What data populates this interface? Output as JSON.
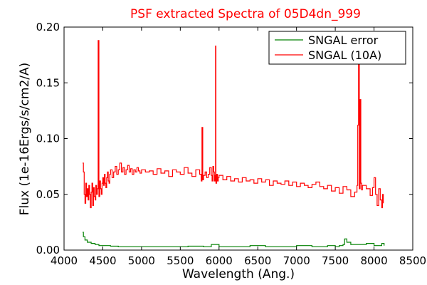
{
  "chart_data": {
    "type": "line",
    "title": "PSF extracted Spectra of 05D4dn_999",
    "xlabel": "Wavelength (Ang.)",
    "ylabel": "Flux (1e-16Ergs/s/cm2/A)",
    "xlim": [
      4000,
      8500
    ],
    "ylim": [
      0.0,
      0.2
    ],
    "xticks": [
      "4000",
      "4500",
      "5000",
      "5500",
      "6000",
      "6500",
      "7000",
      "7500",
      "8000",
      "8500"
    ],
    "yticks": [
      "0.00",
      "0.05",
      "0.10",
      "0.15",
      "0.20"
    ],
    "grid": false,
    "legend_position": "top-right",
    "series": [
      {
        "name": "SNGAL error",
        "color": "#008000",
        "x": [
          4240,
          4250,
          4270,
          4300,
          4350,
          4400,
          4450,
          4500,
          4600,
          4700,
          4800,
          4900,
          5000,
          5200,
          5400,
          5600,
          5800,
          5900,
          6000,
          6200,
          6400,
          6600,
          6800,
          7000,
          7200,
          7400,
          7500,
          7550,
          7600,
          7620,
          7650,
          7700,
          7800,
          7900,
          8000,
          8100,
          8130
        ],
        "y": [
          0.016,
          0.012,
          0.009,
          0.007,
          0.006,
          0.005,
          0.004,
          0.004,
          0.0035,
          0.003,
          0.003,
          0.003,
          0.003,
          0.003,
          0.003,
          0.0035,
          0.003,
          0.005,
          0.003,
          0.003,
          0.004,
          0.003,
          0.003,
          0.004,
          0.003,
          0.004,
          0.003,
          0.004,
          0.005,
          0.01,
          0.007,
          0.005,
          0.005,
          0.006,
          0.004,
          0.006,
          0.004
        ]
      },
      {
        "name": "SNGAL (10A)",
        "color": "#ff0000",
        "x": [
          4240,
          4250,
          4260,
          4270,
          4280,
          4290,
          4300,
          4310,
          4320,
          4330,
          4340,
          4350,
          4360,
          4370,
          4380,
          4390,
          4400,
          4410,
          4420,
          4430,
          4440,
          4450,
          4460,
          4470,
          4480,
          4490,
          4500,
          4510,
          4520,
          4530,
          4540,
          4550,
          4560,
          4570,
          4580,
          4590,
          4600,
          4620,
          4640,
          4660,
          4680,
          4700,
          4720,
          4740,
          4760,
          4780,
          4800,
          4820,
          4840,
          4860,
          4880,
          4900,
          4920,
          4940,
          4960,
          4980,
          5000,
          5050,
          5100,
          5150,
          5200,
          5250,
          5300,
          5350,
          5400,
          5450,
          5500,
          5550,
          5600,
          5650,
          5700,
          5750,
          5770,
          5780,
          5790,
          5800,
          5820,
          5840,
          5860,
          5880,
          5900,
          5910,
          5920,
          5930,
          5940,
          5950,
          5955,
          5960,
          5970,
          5980,
          5990,
          6000,
          6050,
          6100,
          6150,
          6200,
          6250,
          6300,
          6350,
          6400,
          6450,
          6500,
          6550,
          6600,
          6650,
          6700,
          6750,
          6800,
          6850,
          6900,
          6950,
          7000,
          7050,
          7100,
          7150,
          7200,
          7250,
          7300,
          7350,
          7400,
          7450,
          7500,
          7550,
          7600,
          7650,
          7700,
          7750,
          7780,
          7790,
          7800,
          7810,
          7820,
          7830,
          7840,
          7850,
          7900,
          7950,
          7980,
          8000,
          8020,
          8040,
          8060,
          8080,
          8100,
          8110,
          8120
        ],
        "y": [
          0.078,
          0.07,
          0.05,
          0.042,
          0.06,
          0.048,
          0.055,
          0.045,
          0.058,
          0.05,
          0.038,
          0.052,
          0.06,
          0.04,
          0.056,
          0.048,
          0.045,
          0.058,
          0.05,
          0.055,
          0.188,
          0.048,
          0.062,
          0.055,
          0.05,
          0.06,
          0.065,
          0.058,
          0.068,
          0.06,
          0.056,
          0.065,
          0.07,
          0.062,
          0.06,
          0.068,
          0.072,
          0.065,
          0.07,
          0.075,
          0.068,
          0.072,
          0.078,
          0.07,
          0.074,
          0.068,
          0.072,
          0.076,
          0.07,
          0.073,
          0.068,
          0.072,
          0.07,
          0.074,
          0.071,
          0.069,
          0.072,
          0.07,
          0.071,
          0.068,
          0.073,
          0.069,
          0.071,
          0.066,
          0.072,
          0.07,
          0.068,
          0.074,
          0.069,
          0.066,
          0.072,
          0.068,
          0.062,
          0.11,
          0.063,
          0.067,
          0.07,
          0.065,
          0.068,
          0.074,
          0.067,
          0.062,
          0.075,
          0.07,
          0.062,
          0.067,
          0.183,
          0.06,
          0.068,
          0.062,
          0.065,
          0.067,
          0.063,
          0.066,
          0.062,
          0.064,
          0.061,
          0.065,
          0.062,
          0.063,
          0.06,
          0.064,
          0.061,
          0.063,
          0.058,
          0.062,
          0.06,
          0.059,
          0.062,
          0.058,
          0.061,
          0.057,
          0.06,
          0.058,
          0.056,
          0.059,
          0.061,
          0.057,
          0.055,
          0.058,
          0.053,
          0.056,
          0.051,
          0.057,
          0.054,
          0.048,
          0.052,
          0.058,
          0.112,
          0.17,
          0.055,
          0.135,
          0.06,
          0.054,
          0.058,
          0.055,
          0.049,
          0.056,
          0.065,
          0.05,
          0.04,
          0.055,
          0.045,
          0.038,
          0.05,
          0.042
        ]
      }
    ]
  }
}
